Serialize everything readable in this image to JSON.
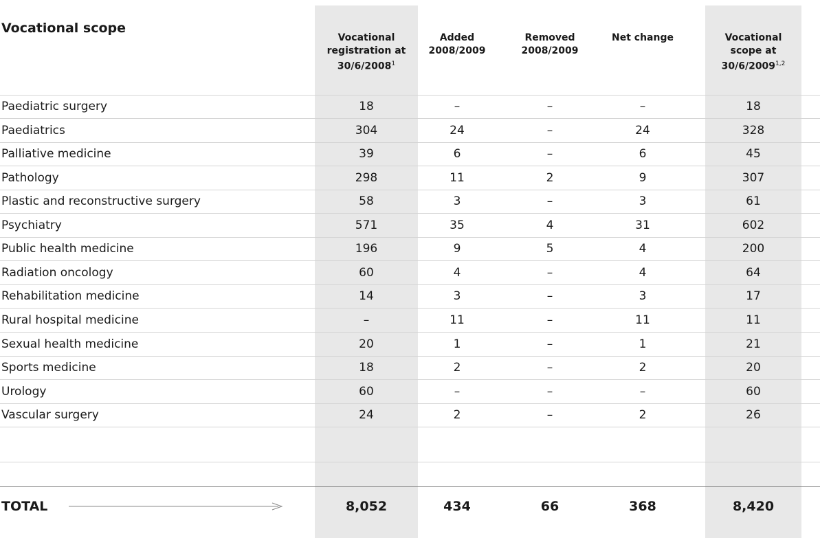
{
  "table": {
    "title": "Vocational scope",
    "headers": [
      {
        "text": "Vocational registration at 30/6/2008",
        "note": "1"
      },
      {
        "text": "Added 2008/2009"
      },
      {
        "text": "Removed 2008/2009"
      },
      {
        "text": "Net change"
      },
      {
        "text": "Vocational scope at 30/6/2009",
        "note": "1,2"
      }
    ],
    "rows": [
      [
        "Paediatric surgery",
        "18",
        "–",
        "–",
        "–",
        "18"
      ],
      [
        "Paediatrics",
        "304",
        "24",
        "–",
        "24",
        "328"
      ],
      [
        "Palliative medicine",
        "39",
        "6",
        "–",
        "6",
        "45"
      ],
      [
        "Pathology",
        "298",
        "11",
        "2",
        "9",
        "307"
      ],
      [
        "Plastic and reconstructive surgery",
        "58",
        "3",
        "–",
        "3",
        "61"
      ],
      [
        "Psychiatry",
        "571",
        "35",
        "4",
        "31",
        "602"
      ],
      [
        "Public health medicine",
        "196",
        "9",
        "5",
        "4",
        "200"
      ],
      [
        "Radiation oncology",
        "60",
        "4",
        "–",
        "4",
        "64"
      ],
      [
        "Rehabilitation medicine",
        "14",
        "3",
        "–",
        "3",
        "17"
      ],
      [
        "Rural hospital medicine",
        "–",
        "11",
        "–",
        "11",
        "11"
      ],
      [
        "Sexual health medicine",
        "20",
        "1",
        "–",
        "1",
        "21"
      ],
      [
        "Sports medicine",
        "18",
        "2",
        "–",
        "2",
        "20"
      ],
      [
        "Urology",
        "60",
        "–",
        "–",
        "–",
        "60"
      ],
      [
        "Vascular surgery",
        "24",
        "2",
        "–",
        "2",
        "26"
      ]
    ],
    "total": [
      "TOTAL",
      "8,052",
      "434",
      "66",
      "368",
      "8,420"
    ]
  }
}
